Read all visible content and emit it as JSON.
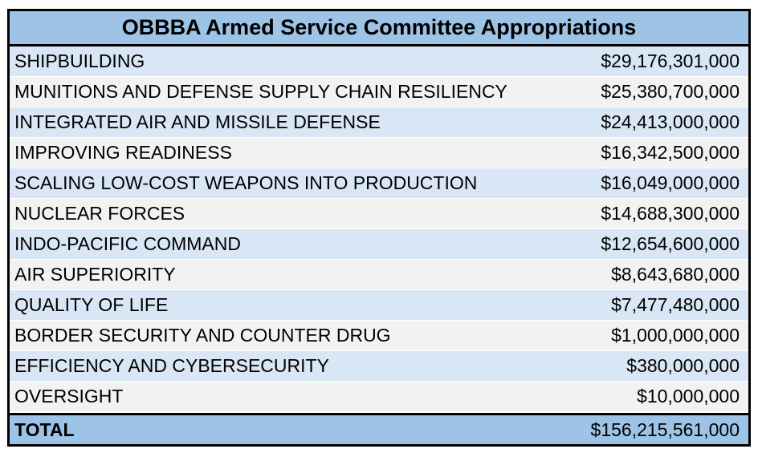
{
  "title": "OBBBA Armed Service Committee Appropriations",
  "rows": [
    {
      "label": "SHIPBUILDING",
      "value": "$29,176,301,000"
    },
    {
      "label": "MUNITIONS AND DEFENSE SUPPLY CHAIN RESILIENCY",
      "value": "$25,380,700,000"
    },
    {
      "label": "INTEGRATED AIR AND MISSILE DEFENSE",
      "value": "$24,413,000,000"
    },
    {
      "label": "IMPROVING READINESS",
      "value": "$16,342,500,000"
    },
    {
      "label": "SCALING LOW-COST WEAPONS INTO PRODUCTION",
      "value": "$16,049,000,000"
    },
    {
      "label": "NUCLEAR FORCES",
      "value": "$14,688,300,000"
    },
    {
      "label": "INDO-PACIFIC COMMAND",
      "value": "$12,654,600,000"
    },
    {
      "label": "AIR SUPERIORITY",
      "value": "$8,643,680,000"
    },
    {
      "label": "QUALITY OF LIFE",
      "value": "$7,477,480,000"
    },
    {
      "label": "BORDER SECURITY AND COUNTER DRUG",
      "value": "$1,000,000,000"
    },
    {
      "label": "EFFICIENCY AND CYBERSECURITY",
      "value": "$380,000,000"
    },
    {
      "label": "OVERSIGHT",
      "value": "$10,000,000"
    }
  ],
  "total": {
    "label": "TOTAL",
    "value": "$156,215,561,000"
  },
  "colors": {
    "header_fill": "#9dc3e6",
    "row_blue": "#d9e6f6",
    "row_gray": "#f2f2f2",
    "border": "#000000"
  }
}
